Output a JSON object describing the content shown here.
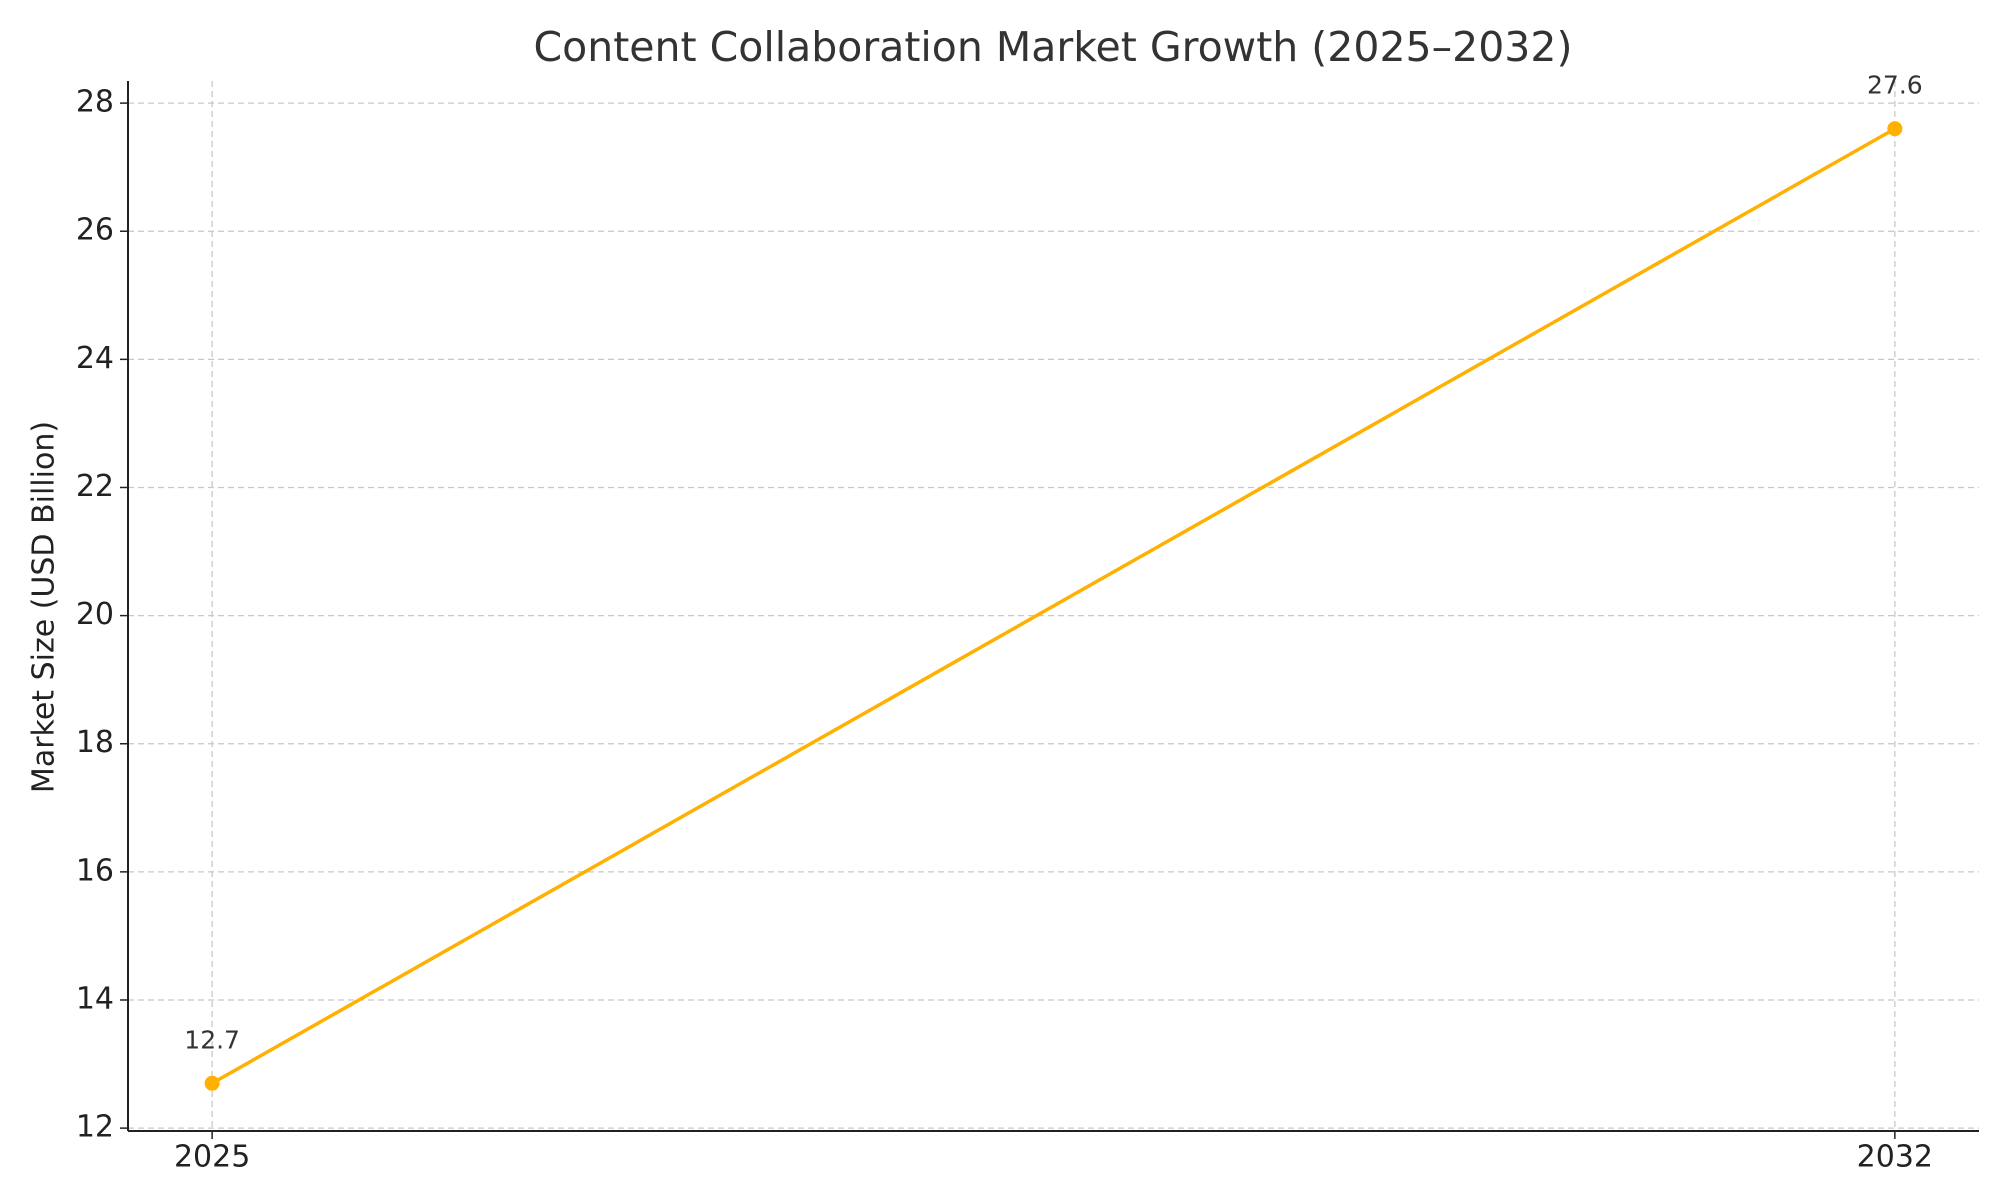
{
  "chart_data": {
    "type": "line",
    "title": "Content Collaboration Market Growth (2025–2032)",
    "y_label": "Market Size (USD Billion)",
    "x": [
      2025,
      2032
    ],
    "values": [
      12.7,
      27.6
    ],
    "color": "#ffb000",
    "xlim": [
      2024.65,
      2032.35
    ],
    "xticks": [
      2025,
      2032
    ],
    "ylim": [
      11.955,
      28.345
    ],
    "yticks": [
      12,
      14,
      16,
      18,
      20,
      22,
      24,
      26,
      28
    ],
    "grid": true
  }
}
